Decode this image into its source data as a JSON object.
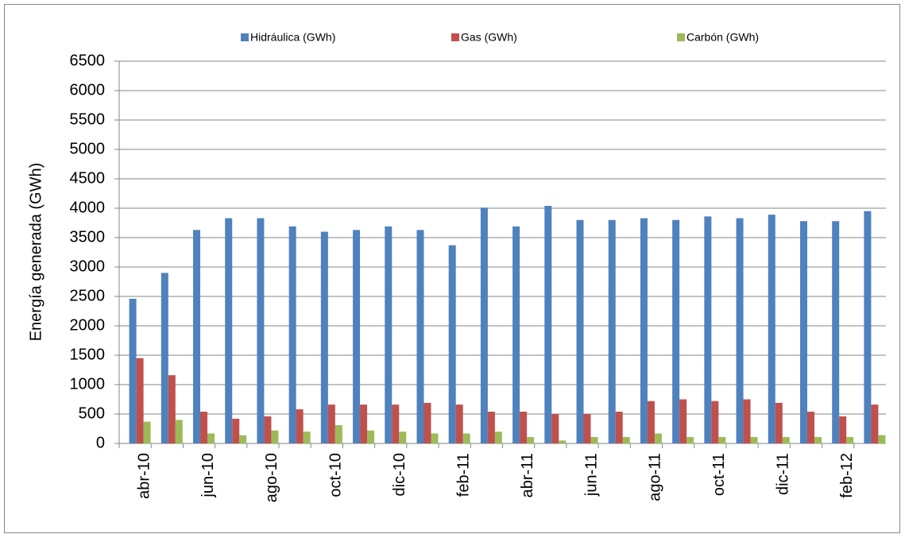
{
  "chart_data": {
    "type": "bar",
    "y_label": "Energía generada (GWh)",
    "categories": [
      "abr-10",
      null,
      "jun-10",
      null,
      "ago-10",
      null,
      "oct-10",
      null,
      "dic-10",
      null,
      "feb-11",
      null,
      "abr-11",
      null,
      "jun-11",
      null,
      "ago-11",
      null,
      "oct-11",
      null,
      "dic-11",
      null,
      "feb-12",
      null
    ],
    "series": [
      {
        "name": "Hidráulica (GWh)",
        "color": "#4f81bd",
        "values": [
          2460,
          2900,
          3630,
          3830,
          3830,
          3690,
          3600,
          3630,
          3690,
          3630,
          3370,
          4010,
          3690,
          4040,
          3800,
          3800,
          3830,
          3800,
          3860,
          3830,
          3890,
          3780,
          3780,
          3950
        ]
      },
      {
        "name": "Gas (GWh)",
        "color": "#c0504d",
        "values": [
          1450,
          1160,
          540,
          420,
          460,
          580,
          660,
          660,
          660,
          690,
          660,
          540,
          540,
          500,
          500,
          540,
          720,
          750,
          720,
          750,
          690,
          540,
          460,
          660
        ]
      },
      {
        "name": "Carbón (GWh)",
        "color": "#9bbb59",
        "values": [
          370,
          400,
          170,
          140,
          220,
          200,
          310,
          220,
          200,
          170,
          170,
          200,
          110,
          50,
          110,
          110,
          170,
          110,
          110,
          110,
          110,
          110,
          110,
          140
        ]
      }
    ],
    "ylim": [
      0,
      6500
    ],
    "yticks": [
      0,
      500,
      1000,
      1500,
      2000,
      2500,
      3000,
      3500,
      4000,
      4500,
      5000,
      5500,
      6000,
      6500
    ],
    "grid": true,
    "legend": "top"
  }
}
